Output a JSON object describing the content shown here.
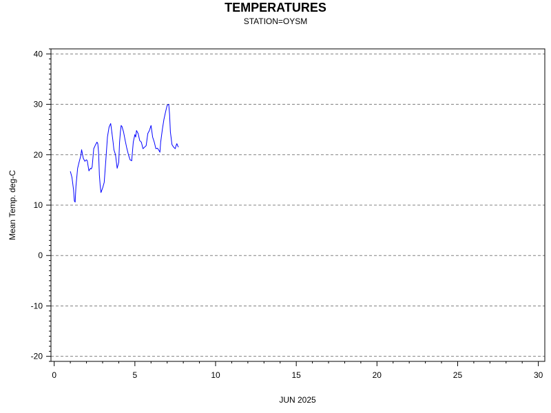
{
  "chart_data": {
    "type": "line",
    "title": "TEMPERATURES",
    "subtitle": "STATION=OYSM",
    "xlabel": "JUN 2025",
    "ylabel": "Mean Temp. deg-C",
    "xlim": [
      -0.2,
      30.4
    ],
    "ylim": [
      -21,
      41
    ],
    "x_ticks": [
      0,
      5,
      10,
      15,
      20,
      25,
      30
    ],
    "y_ticks": [
      40,
      30,
      20,
      10,
      0,
      -10,
      -20
    ],
    "grid": "horizontal-dashed",
    "line_color": "#0000ff",
    "grid_color": "#808080",
    "series": [
      {
        "x": [
          1.0,
          1.1,
          1.2,
          1.25,
          1.3,
          1.35,
          1.45,
          1.55,
          1.65,
          1.7,
          1.8,
          1.9,
          2.0,
          2.05,
          2.1,
          2.15,
          2.25,
          2.3,
          2.35,
          2.45,
          2.55,
          2.65,
          2.7,
          2.75,
          2.8,
          2.85,
          2.9,
          3.0,
          3.1,
          3.2,
          3.3,
          3.4,
          3.5,
          3.55,
          3.6,
          3.65,
          3.7,
          3.8,
          3.9,
          4.0,
          4.05,
          4.1,
          4.15,
          4.2,
          4.3,
          4.4,
          4.5,
          4.6,
          4.7,
          4.8,
          4.9,
          5.0,
          5.05,
          5.1,
          5.2,
          5.3,
          5.4,
          5.5,
          5.6,
          5.7,
          5.8,
          5.9,
          6.0,
          6.1,
          6.2,
          6.3,
          6.4,
          6.5,
          6.55,
          6.6,
          6.7,
          6.8,
          6.9,
          7.0,
          7.1,
          7.15,
          7.2,
          7.3,
          7.4,
          7.5,
          7.55,
          7.6,
          7.65,
          7.7
        ],
        "y": [
          16.7,
          15.5,
          13.0,
          10.8,
          10.6,
          13.8,
          17.3,
          18.6,
          19.8,
          21.0,
          19.3,
          18.7,
          19.0,
          18.8,
          17.8,
          16.8,
          17.3,
          17.2,
          17.6,
          21.2,
          21.9,
          22.5,
          22.2,
          20.5,
          16.0,
          13.8,
          12.5,
          13.4,
          14.5,
          19.0,
          23.5,
          25.5,
          26.2,
          25.0,
          23.8,
          22.5,
          21.0,
          20.0,
          17.3,
          18.5,
          22.5,
          24.5,
          25.8,
          25.6,
          24.5,
          22.8,
          21.3,
          20.0,
          19.0,
          18.8,
          22.5,
          24.0,
          23.5,
          24.8,
          24.2,
          22.8,
          22.5,
          21.2,
          21.5,
          21.8,
          24.2,
          24.8,
          25.8,
          23.5,
          22.5,
          21.2,
          21.3,
          20.8,
          20.5,
          22.5,
          25.0,
          27.0,
          28.5,
          29.8,
          30.0,
          28.0,
          24.5,
          22.0,
          21.5,
          21.2,
          21.8,
          22.2,
          21.8,
          21.5
        ]
      }
    ]
  }
}
